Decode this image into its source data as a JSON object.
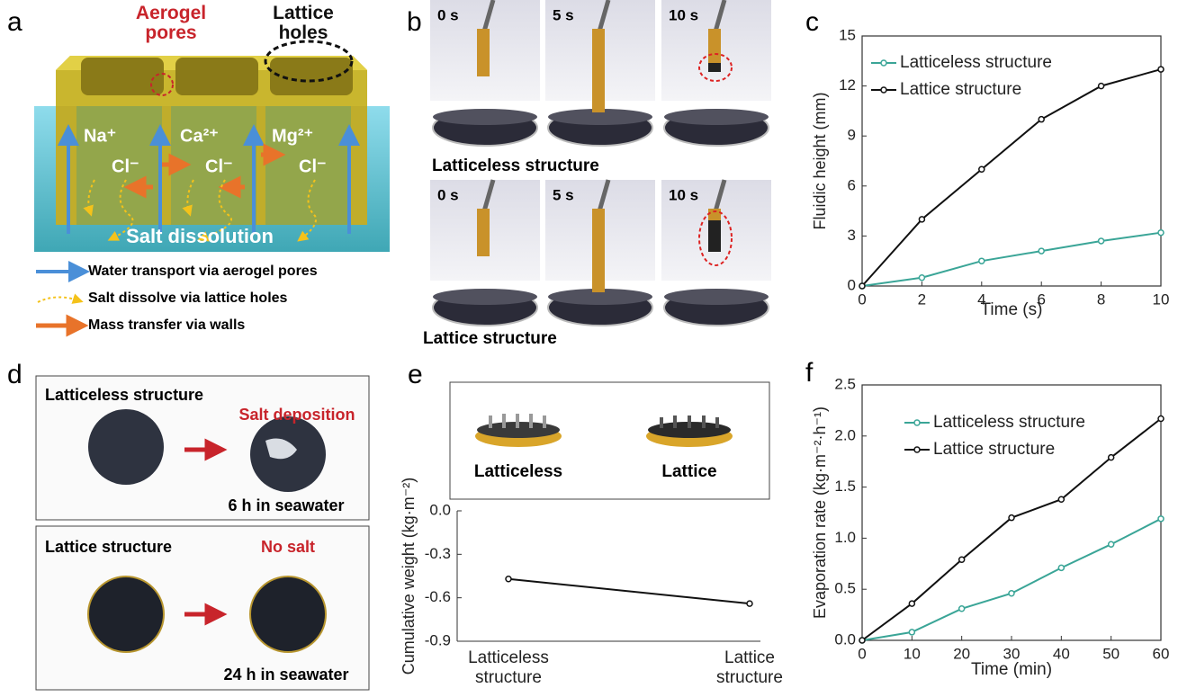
{
  "figure": {
    "panel_a": {
      "label": "a",
      "pores_label": "Aerogel pores",
      "holes_label": "Lattice holes",
      "cations": [
        "Na⁺",
        "Ca²⁺",
        "Mg²⁺"
      ],
      "anions": [
        "Cl⁻",
        "Cl⁻",
        "Cl⁻"
      ],
      "dissolution": "Salt dissolution",
      "legend": [
        "Water transport via aerogel pores",
        "Salt dissolve via lattice holes",
        "Mass transfer via walls"
      ]
    },
    "panel_b": {
      "label": "b",
      "times_top": [
        "0 s",
        "5 s",
        "10 s"
      ],
      "times_bottom": [
        "0 s",
        "5 s",
        "10 s"
      ],
      "caption_top": "Latticeless structure",
      "caption_bottom": "Lattice structure"
    },
    "panel_d": {
      "label": "d",
      "top_title": "Latticeless structure",
      "top_result": "Salt deposition",
      "top_time": "6 h in seawater",
      "bottom_title": "Lattice structure",
      "bottom_result": "No salt",
      "bottom_time": "24 h in seawater"
    },
    "panel_e": {
      "label": "e",
      "samples": [
        "Latticeless",
        "Lattice"
      ]
    }
  },
  "chart_data": [
    {
      "type": "line",
      "panel_label": "c",
      "xlabel": "Time (s)",
      "ylabel": "Fluidic height (mm)",
      "x": [
        0,
        2,
        4,
        6,
        8,
        10
      ],
      "xlim": [
        0,
        10
      ],
      "xticks": [
        0,
        2,
        4,
        6,
        8,
        10
      ],
      "ylim": [
        0,
        15
      ],
      "yticks": [
        0,
        3,
        6,
        9,
        12,
        15
      ],
      "legend": "upper left",
      "series": [
        {
          "name": "Latticeless structure",
          "color": "#3aa597",
          "values": [
            0,
            0.5,
            1.5,
            2.1,
            2.7,
            3.2
          ]
        },
        {
          "name": "Lattice structure",
          "color": "#111111",
          "values": [
            0,
            4,
            7,
            10,
            12,
            13
          ]
        }
      ]
    },
    {
      "type": "line",
      "panel_label": "e",
      "ylabel": "Cumulative weight (kg·m⁻²)",
      "categories": [
        "Latticeless structure",
        "Lattice structure"
      ],
      "ylim": [
        -0.9,
        0
      ],
      "yticks": [
        {
          "value": 0,
          "label": "0.0"
        },
        -0.3,
        -0.6,
        -0.9
      ],
      "series": [
        {
          "color": "#111111",
          "values": [
            -0.47,
            -0.64
          ]
        }
      ]
    },
    {
      "type": "line",
      "panel_label": "f",
      "xlabel": "Time (min)",
      "ylabel": "Evaporation rate (kg·m⁻²·h⁻¹)",
      "x": [
        0,
        10,
        20,
        30,
        40,
        50,
        60
      ],
      "xlim": [
        0,
        60
      ],
      "xticks": [
        0,
        10,
        20,
        30,
        40,
        50,
        60
      ],
      "ylim": [
        0,
        2.5
      ],
      "yticks": [
        {
          "value": 0,
          "label": "0.0"
        },
        0.5,
        {
          "value": 1,
          "label": "1.0"
        },
        1.5,
        {
          "value": 2,
          "label": "2.0"
        },
        2.5
      ],
      "legend": "upper left",
      "series": [
        {
          "name": "Latticeless structure",
          "color": "#3aa597",
          "values": [
            0,
            0.08,
            0.31,
            0.46,
            0.71,
            0.94,
            1.19
          ]
        },
        {
          "name": "Lattice structure",
          "color": "#111111",
          "values": [
            0,
            0.36,
            0.79,
            1.2,
            1.38,
            1.79,
            2.17
          ]
        }
      ]
    }
  ]
}
